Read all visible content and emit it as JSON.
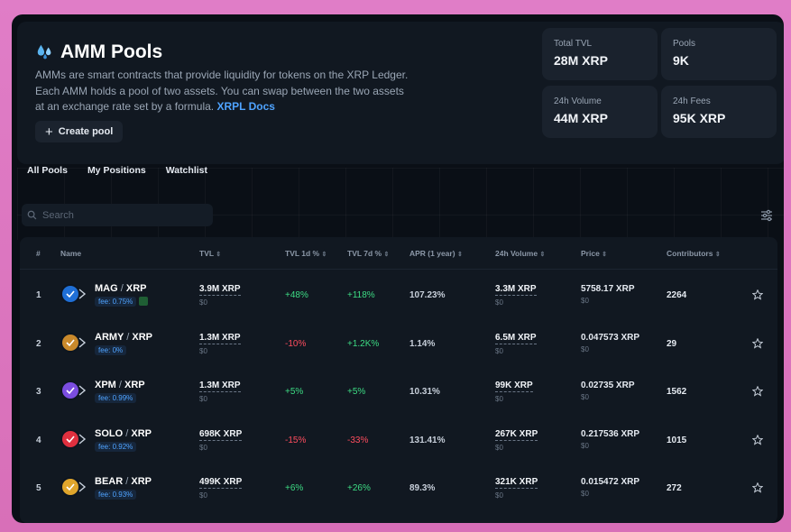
{
  "header": {
    "title": "AMM Pools",
    "description": "AMMs are smart contracts that provide liquidity for tokens on the XRP Ledger. Each AMM holds a pool of two assets. You can swap between the two assets at an exchange rate set by a formula.",
    "docs_link": "XRPL Docs",
    "create_label": "Create pool"
  },
  "stats": {
    "total_tvl_label": "Total TVL",
    "total_tvl_value": "28M XRP",
    "pools_label": "Pools",
    "pools_value": "9K",
    "volume_label": "24h Volume",
    "volume_value": "44M XRP",
    "fees_label": "24h Fees",
    "fees_value": "95K XRP"
  },
  "tabs": [
    "All Pools",
    "My Positions",
    "Watchlist"
  ],
  "search": {
    "placeholder": "Search"
  },
  "columns": {
    "index": "#",
    "name": "Name",
    "tvl": "TVL",
    "tvl1d": "TVL 1d %",
    "tvl7d": "TVL 7d %",
    "apr": "APR (1 year)",
    "volume": "24h Volume",
    "price": "Price",
    "contributors": "Contributors"
  },
  "rows": [
    {
      "idx": "1",
      "base": "MAG",
      "quote": "XRP",
      "fee": "fee: 0.75%",
      "tvl": "3.9M XRP",
      "tvl_sub": "$0",
      "d1": "+48%",
      "d7": "+118%",
      "apr": "107.23%",
      "vol": "3.3M XRP",
      "vol_sub": "$0",
      "price": "5758.17 XRP",
      "price_sub": "$0",
      "contrib": "2264",
      "logo_color": "#1f6fd6"
    },
    {
      "idx": "2",
      "base": "ARMY",
      "quote": "XRP",
      "fee": "fee: 0%",
      "tvl": "1.3M XRP",
      "tvl_sub": "$0",
      "d1": "-10%",
      "d7": "+1.2K%",
      "apr": "1.14%",
      "vol": "6.5M XRP",
      "vol_sub": "$0",
      "price": "0.047573 XRP",
      "price_sub": "$0",
      "contrib": "29",
      "logo_color": "#c9892b"
    },
    {
      "idx": "3",
      "base": "XPM",
      "quote": "XRP",
      "fee": "fee: 0.99%",
      "tvl": "1.3M XRP",
      "tvl_sub": "$0",
      "d1": "+5%",
      "d7": "+5%",
      "apr": "10.31%",
      "vol": "99K XRP",
      "vol_sub": "$0",
      "price": "0.02735 XRP",
      "price_sub": "$0",
      "contrib": "1562",
      "logo_color": "#7b4de0"
    },
    {
      "idx": "4",
      "base": "SOLO",
      "quote": "XRP",
      "fee": "fee: 0.92%",
      "tvl": "698K XRP",
      "tvl_sub": "$0",
      "d1": "-15%",
      "d7": "-33%",
      "apr": "131.41%",
      "vol": "267K XRP",
      "vol_sub": "$0",
      "price": "0.217536 XRP",
      "price_sub": "$0",
      "contrib": "1015",
      "logo_color": "#e0303f"
    },
    {
      "idx": "5",
      "base": "BEAR",
      "quote": "XRP",
      "fee": "fee: 0.93%",
      "tvl": "499K XRP",
      "tvl_sub": "$0",
      "d1": "+6%",
      "d7": "+26%",
      "apr": "89.3%",
      "vol": "321K XRP",
      "vol_sub": "$0",
      "price": "0.015472 XRP",
      "price_sub": "$0",
      "contrib": "272",
      "logo_color": "#e0a52c"
    }
  ],
  "colors": {
    "accent": "#4fa3ff",
    "positive": "#3ddc84",
    "negative": "#ff4d5e",
    "background": "#0a0f16"
  }
}
